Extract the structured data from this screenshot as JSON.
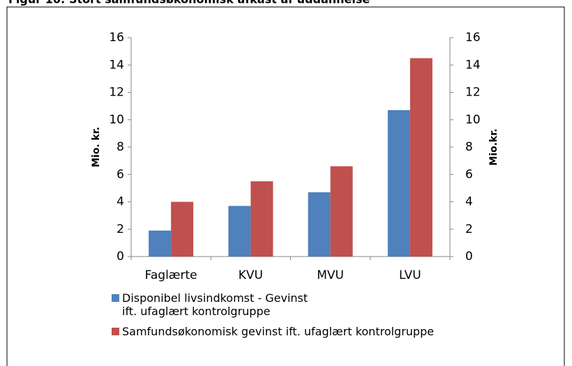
{
  "chart_data": {
    "type": "bar",
    "title": "Figur 10: Stort samfundsøkonomisk afkast af uddannelse",
    "categories": [
      "Faglærte",
      "KVU",
      "MVU",
      "LVU"
    ],
    "series": [
      {
        "name": "Disponibel livsindkomst - Gevinst ift. ufaglært kontrolgruppe",
        "color": "#4f81bd",
        "values": [
          1.9,
          3.7,
          4.7,
          10.7
        ]
      },
      {
        "name": "Samfundsøkonomisk gevinst ift. ufaglært kontrolgruppe",
        "color": "#c0504d",
        "values": [
          4.0,
          5.5,
          6.6,
          14.5
        ]
      }
    ],
    "ylabel": "Mio. kr.",
    "y2label": "Mio.kr.",
    "ylim": [
      0,
      16
    ],
    "yticks": [
      0,
      2,
      4,
      6,
      8,
      10,
      12,
      14,
      16
    ],
    "y2lim": [
      0,
      16
    ],
    "y2ticks": [
      0,
      2,
      4,
      6,
      8,
      10,
      12,
      14,
      16
    ],
    "grid": false,
    "legend": "bottom"
  }
}
